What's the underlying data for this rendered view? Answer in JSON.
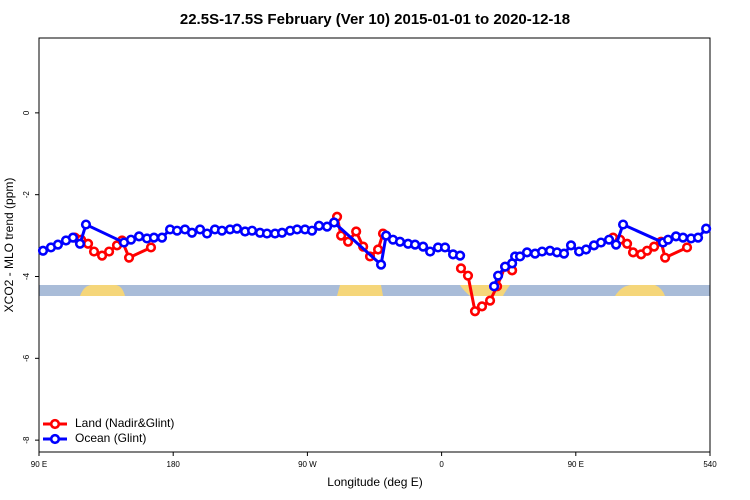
{
  "chart_data": {
    "type": "line",
    "title": "22.5S-17.5S February (Ver 10)   2015-01-01 to 2020-12-18",
    "x_label": "Longitude (deg E)",
    "y_label": "XCO2 - MLO trend (ppm)",
    "xlim": [
      90,
      540
    ],
    "ylim": [
      -8.29,
      1.83
    ],
    "xticks": [
      {
        "value": 90,
        "label": "90 E"
      },
      180,
      {
        "value": 270,
        "label": "90 W"
      },
      {
        "value": 360,
        "label": "0"
      },
      {
        "value": 450,
        "label": "90 E"
      },
      540
    ],
    "yticks": [
      0,
      -2,
      -4,
      -6,
      -8
    ],
    "legend": "bottom-left",
    "series": [
      {
        "name": "Land (Nadir&Glint)",
        "color": "#ff0000",
        "x": [
          114.1,
          118.2,
          122.9,
          126.9,
          132.3,
          137.0,
          142.3,
          145.7,
          150.4,
          165.1,
          230,
          289.9,
          292.6,
          297.3,
          302.7,
          307.4,
          312.0,
          317.4,
          320.7,
          340,
          373.0,
          377.7,
          382.4,
          387.1,
          392.5,
          397.2,
          402.6,
          407.3,
          450,
          475.0,
          479.7,
          484.4,
          488.4,
          493.8,
          497.8,
          502.5,
          507.2,
          509.9,
          524.6
        ],
        "values": [
          -3.05,
          -3.1,
          -3.2,
          -3.39,
          -3.49,
          -3.39,
          -3.24,
          -3.12,
          -3.54,
          -3.29,
          null,
          -2.54,
          -3.0,
          -3.15,
          -2.9,
          -3.27,
          -3.51,
          -3.34,
          -2.95,
          null,
          -3.8,
          -3.98,
          -4.85,
          -4.73,
          -4.59,
          -4.24,
          -3.76,
          -3.85,
          null,
          -3.05,
          -3.1,
          -3.2,
          -3.41,
          -3.46,
          -3.37,
          -3.27,
          -3.15,
          -3.54,
          -3.29
        ]
      },
      {
        "name": "Ocean (Glint)",
        "color": "#0000ff",
        "x": [
          92.7,
          98.0,
          102.7,
          108.1,
          112.8,
          117.5,
          121.5,
          147.0,
          151.7,
          157.1,
          162.4,
          167.1,
          172.5,
          177.9,
          182.6,
          187.9,
          192.6,
          198.0,
          202.7,
          208.0,
          212.7,
          218.1,
          222.8,
          228.2,
          232.9,
          238.2,
          242.9,
          248.3,
          253.0,
          258.4,
          263.1,
          268.4,
          273.1,
          277.8,
          283.2,
          287.9,
          319.4,
          322.8,
          327.4,
          332.1,
          337.5,
          342.2,
          347.6,
          352.3,
          357.6,
          362.3,
          367.7,
          372.4,
          384,
          395.2,
          397.9,
          402.6,
          407.3,
          409.3,
          412.6,
          417.3,
          422.7,
          427.4,
          432.7,
          437.4,
          442.1,
          446.8,
          452.2,
          456.9,
          462.2,
          466.9,
          472.3,
          477.0,
          481.7,
          508.5,
          511.9,
          517.2,
          521.9,
          527.3,
          532.0,
          537.4
        ],
        "values": [
          -3.37,
          -3.29,
          -3.22,
          -3.12,
          -3.05,
          -3.2,
          -2.73,
          -3.17,
          -3.1,
          -3.02,
          -3.07,
          -3.05,
          -3.05,
          -2.85,
          -2.88,
          -2.85,
          -2.93,
          -2.85,
          -2.95,
          -2.85,
          -2.88,
          -2.85,
          -2.83,
          -2.9,
          -2.88,
          -2.93,
          -2.95,
          -2.95,
          -2.93,
          -2.88,
          -2.85,
          -2.85,
          -2.88,
          -2.76,
          -2.78,
          -2.68,
          -3.71,
          -3.0,
          -3.1,
          -3.15,
          -3.2,
          -3.22,
          -3.27,
          -3.39,
          -3.29,
          -3.29,
          -3.46,
          -3.49,
          null,
          -4.24,
          -3.98,
          -3.76,
          -3.68,
          -3.51,
          -3.51,
          -3.41,
          -3.44,
          -3.39,
          -3.37,
          -3.41,
          -3.44,
          -3.24,
          -3.39,
          -3.34,
          -3.24,
          -3.17,
          -3.1,
          -3.22,
          -2.73,
          -3.17,
          -3.1,
          -3.02,
          -3.05,
          -3.07,
          -3.05,
          -2.83
        ]
      }
    ]
  }
}
